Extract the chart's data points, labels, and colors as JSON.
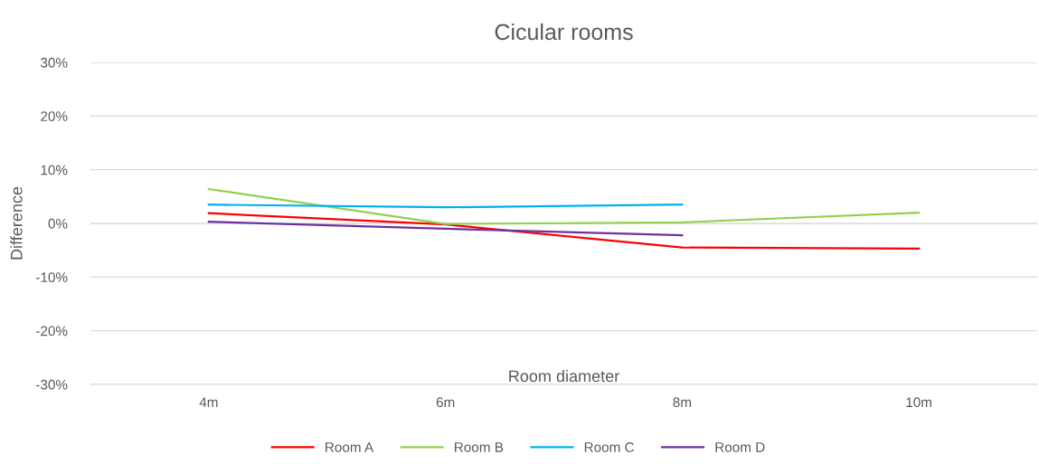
{
  "chart_data": {
    "type": "line",
    "title": "Cicular rooms",
    "xlabel": "Room diameter",
    "ylabel": "Difference",
    "categories": [
      "4m",
      "6m",
      "8m",
      "10m"
    ],
    "series": [
      {
        "name": "Room A",
        "color": "#ff0000",
        "values": [
          1.9,
          -0.2,
          -4.5,
          -4.7
        ]
      },
      {
        "name": "Room B",
        "color": "#92d050",
        "values": [
          6.4,
          -0.1,
          0.2,
          2.0
        ]
      },
      {
        "name": "Room C",
        "color": "#00b0f0",
        "values": [
          3.5,
          3.0,
          3.5,
          null
        ]
      },
      {
        "name": "Room D",
        "color": "#7030a0",
        "values": [
          0.3,
          -1.0,
          -2.2,
          null
        ]
      }
    ],
    "ylim": [
      -30,
      30
    ],
    "yticks": [
      {
        "value": -30,
        "label": "-30%"
      },
      {
        "value": -20,
        "label": "-20%"
      },
      {
        "value": -10,
        "label": "-10%"
      },
      {
        "value": 0,
        "label": "0%"
      },
      {
        "value": 10,
        "label": "10%"
      },
      {
        "value": 20,
        "label": "20%"
      },
      {
        "value": 30,
        "label": "30%"
      }
    ],
    "grid": "y",
    "legend": "bottom",
    "marker": "none",
    "line_style": "solid"
  }
}
